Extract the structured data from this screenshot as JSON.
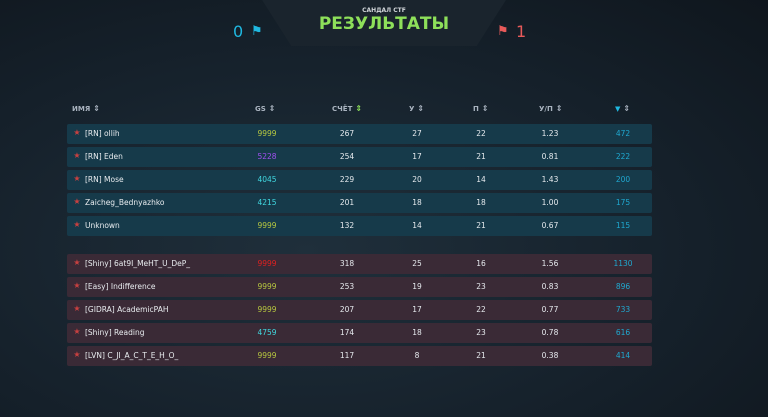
{
  "header": {
    "subtitle": "САНДАЛ CTF",
    "title": "РЕЗУЛЬТАТЫ",
    "score_left": "0",
    "score_right": "1",
    "flag_left_icon": "flag-icon",
    "flag_right_icon": "flag-icon"
  },
  "columns": [
    "ИМЯ",
    "GS",
    "СЧЁТ",
    "У",
    "П",
    "У/П",
    "diamond-icon"
  ],
  "colors": {
    "team1_row": "#163a4a",
    "team2_row": "#3a2a36",
    "accent": "#8ee05a",
    "blue": "#1fb8e0",
    "red": "#e85a5a"
  },
  "team1": [
    {
      "name": "[RN] ollih",
      "gs": "9999",
      "gs_color": "#b8c840",
      "score": "267",
      "u": "27",
      "p": "22",
      "kd": "1.23",
      "d": "472"
    },
    {
      "name": "[RN] Eden",
      "gs": "5228",
      "gs_color": "#a050f0",
      "score": "254",
      "u": "17",
      "p": "21",
      "kd": "0.81",
      "d": "222"
    },
    {
      "name": "[RN] Mose",
      "gs": "4045",
      "gs_color": "#40d8e0",
      "score": "229",
      "u": "20",
      "p": "14",
      "kd": "1.43",
      "d": "200"
    },
    {
      "name": "Zaicheg_Bednyazhko",
      "gs": "4215",
      "gs_color": "#40d8e0",
      "score": "201",
      "u": "18",
      "p": "18",
      "kd": "1.00",
      "d": "175"
    },
    {
      "name": "Unknown",
      "gs": "9999",
      "gs_color": "#b8c840",
      "score": "132",
      "u": "14",
      "p": "21",
      "kd": "0.67",
      "d": "115"
    }
  ],
  "team2": [
    {
      "name": "[Shiny] 6at9I_MeHT_U_DeP_",
      "gs": "9999",
      "gs_color": "#e02020",
      "score": "318",
      "u": "25",
      "p": "16",
      "kd": "1.56",
      "d": "1130"
    },
    {
      "name": "[Easy] Indifference",
      "gs": "9999",
      "gs_color": "#b8c840",
      "score": "253",
      "u": "19",
      "p": "23",
      "kd": "0.83",
      "d": "896"
    },
    {
      "name": "[GIDRA] AcademicPAH",
      "gs": "9999",
      "gs_color": "#b8c840",
      "score": "207",
      "u": "17",
      "p": "22",
      "kd": "0.77",
      "d": "733"
    },
    {
      "name": "[Shiny] Reading",
      "gs": "4759",
      "gs_color": "#40d8e0",
      "score": "174",
      "u": "18",
      "p": "23",
      "kd": "0.78",
      "d": "616"
    },
    {
      "name": "[LVN] C_JI_A_C_T_E_H_O_",
      "gs": "9999",
      "gs_color": "#b8c840",
      "score": "117",
      "u": "8",
      "p": "21",
      "kd": "0.38",
      "d": "414"
    }
  ]
}
